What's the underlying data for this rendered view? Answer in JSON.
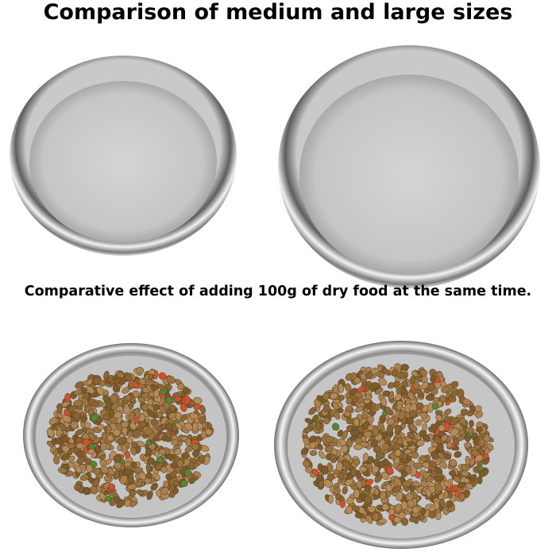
{
  "title": "Comparison of medium and large sizes",
  "caption": "Comparative effect of adding 100g of dry food at the same time."
}
